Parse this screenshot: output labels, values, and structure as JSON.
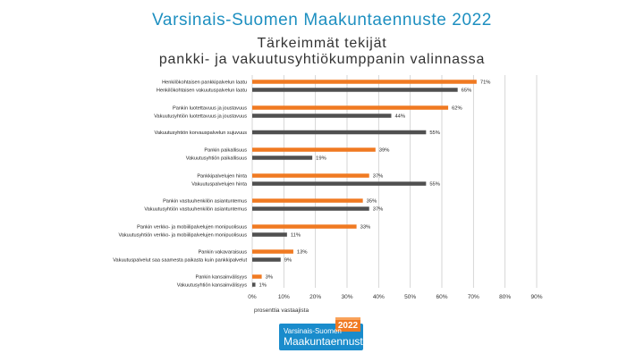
{
  "header": {
    "title": "Varsinais-Suomen Maakuntaennuste 2022",
    "subtitle_line1": "Tärkeimmät tekijät",
    "subtitle_line2": "pankki- ja vakuutusyhtiökumppanin valinnassa"
  },
  "colors": {
    "bank": "#f07a22",
    "insurance": "#505050",
    "title": "#1d8fc0",
    "grid": "#cccccc"
  },
  "chart_data": {
    "type": "bar",
    "orientation": "horizontal",
    "xlabel": "prosenttia vastaajista",
    "xlim": [
      0,
      90
    ],
    "xticks": [
      0,
      10,
      20,
      30,
      40,
      50,
      60,
      70,
      80,
      90
    ],
    "xtick_labels": [
      "0%",
      "10%",
      "20%",
      "30%",
      "40%",
      "50%",
      "60%",
      "70%",
      "80%",
      "90%"
    ],
    "grid": true,
    "groups": [
      {
        "bars": [
          {
            "label": "Henkilökohtaisen pankkipalvelun laatu",
            "value": 71,
            "value_label": "71%",
            "kind": "bank"
          },
          {
            "label": "Henkilökohtaisen vakuutuspalvelun laatu",
            "value": 65,
            "value_label": "65%",
            "kind": "insurance"
          }
        ]
      },
      {
        "bars": [
          {
            "label": "Pankin luotettavuus ja joustavuus",
            "value": 62,
            "value_label": "62%",
            "kind": "bank"
          },
          {
            "label": "Vakuutusyhtiön luotettavuus ja joustavuus",
            "value": 44,
            "value_label": "44%",
            "kind": "insurance"
          }
        ]
      },
      {
        "bars": [
          {
            "label": "Vakuutusyhtiön korvauspalvelun sujuvuus",
            "value": 55,
            "value_label": "55%",
            "kind": "insurance"
          }
        ]
      },
      {
        "bars": [
          {
            "label": "Pankin paikallisuus",
            "value": 39,
            "value_label": "39%",
            "kind": "bank"
          },
          {
            "label": "Vakuutusyhtiön paikallisuus",
            "value": 19,
            "value_label": "19%",
            "kind": "insurance"
          }
        ]
      },
      {
        "bars": [
          {
            "label": "Pankkipalvelujen hinta",
            "value": 37,
            "value_label": "37%",
            "kind": "bank"
          },
          {
            "label": "Vakuutuspalvelujen hinta",
            "value": 55,
            "value_label": "55%",
            "kind": "insurance"
          }
        ]
      },
      {
        "bars": [
          {
            "label": "Pankin vastuuhenkilön asiantuntemus",
            "value": 35,
            "value_label": "35%",
            "kind": "bank"
          },
          {
            "label": "Vakuutusyhtiön vastuuhenkilön asiantuntemus",
            "value": 37,
            "value_label": "37%",
            "kind": "insurance"
          }
        ]
      },
      {
        "bars": [
          {
            "label": "Pankin verkko- ja mobiilipalvelujen monipuolisuus",
            "value": 33,
            "value_label": "33%",
            "kind": "bank"
          },
          {
            "label": "Vakuutusyhtiön verkko- ja mobiilipalvelujen monipuolisuus",
            "value": 11,
            "value_label": "11%",
            "kind": "insurance"
          }
        ]
      },
      {
        "bars": [
          {
            "label": "Pankin vakavaraisuus",
            "value": 13,
            "value_label": "13%",
            "kind": "bank"
          },
          {
            "label": "Vakuutuspalvelut saa saamesta paikasta kuin pankkipalvelut",
            "value": 9,
            "value_label": "9%",
            "kind": "insurance"
          }
        ]
      },
      {
        "bars": [
          {
            "label": "Pankin kansainvälisyys",
            "value": 3,
            "value_label": "3%",
            "kind": "bank"
          },
          {
            "label": "Vakuutusyhtiön kansainvälisyys",
            "value": 1,
            "value_label": "1%",
            "kind": "insurance"
          }
        ]
      }
    ]
  },
  "logo": {
    "line1": "Varsinais-Suomen",
    "line2": "Maakuntaennuste",
    "year": "2022"
  }
}
